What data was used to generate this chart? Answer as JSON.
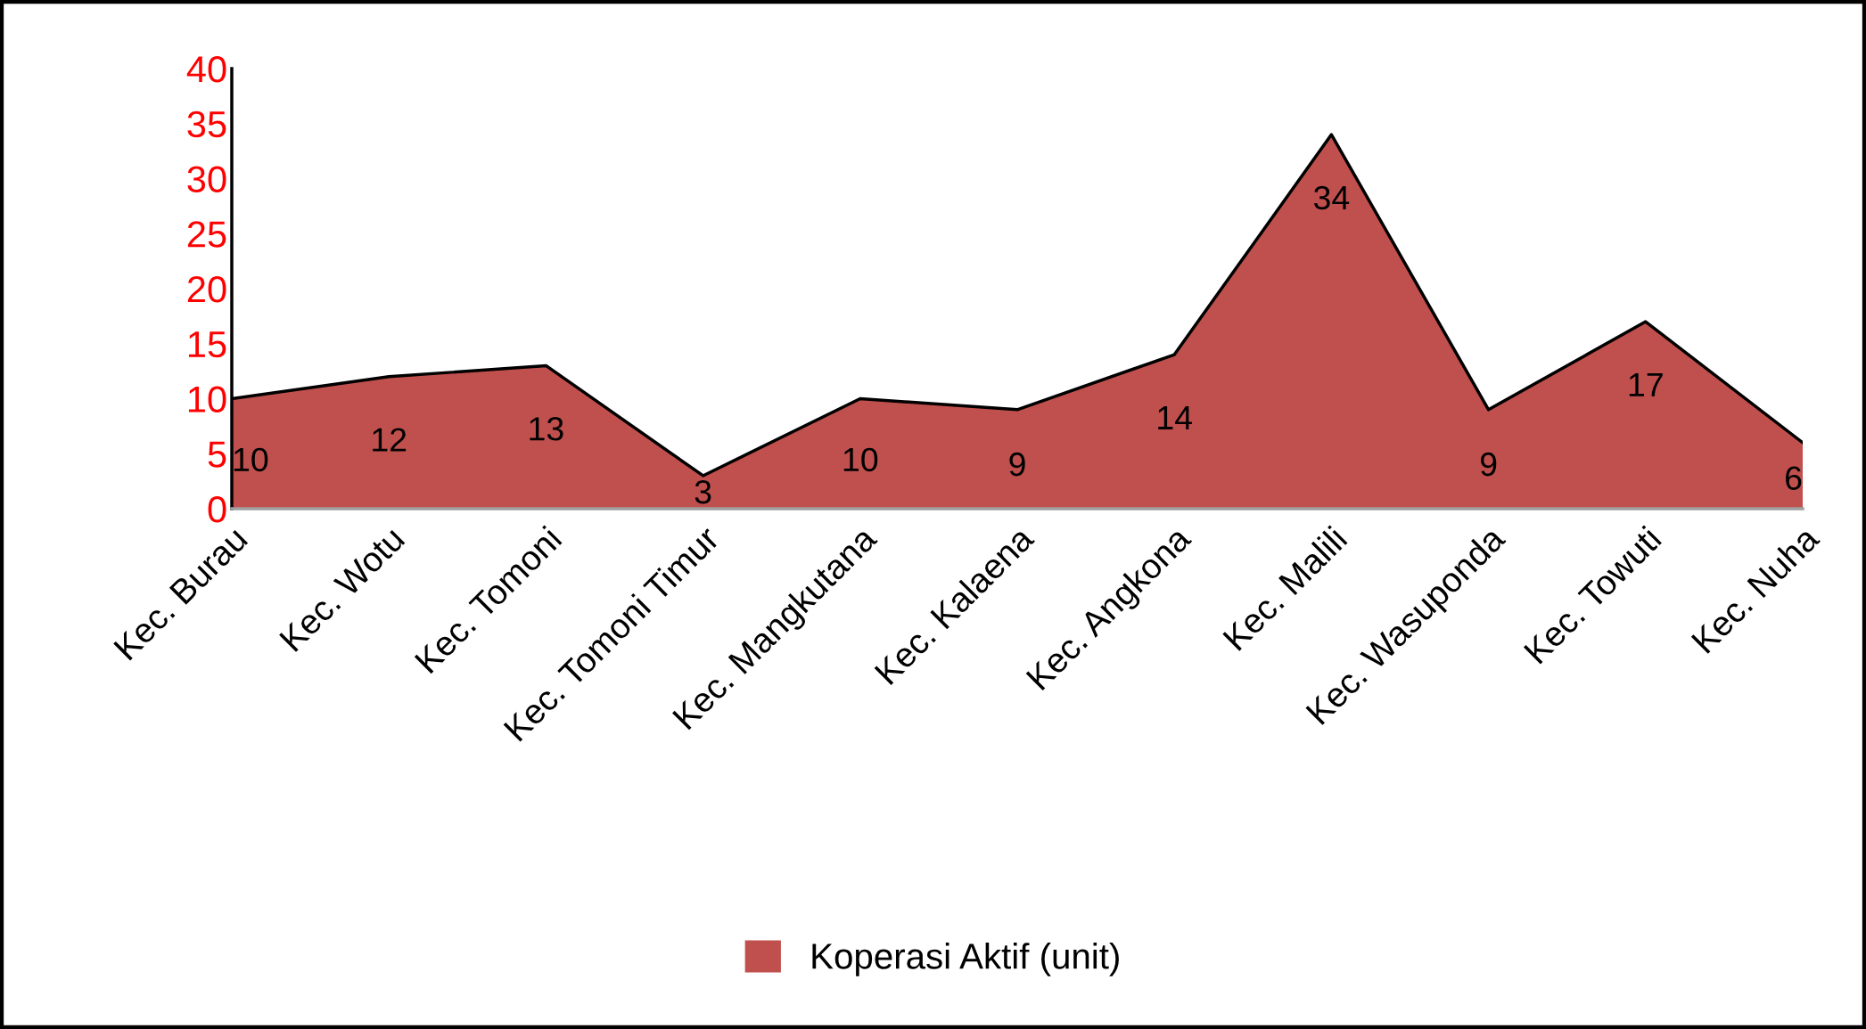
{
  "chart_data": {
    "type": "area",
    "categories": [
      "Kec. Burau",
      "Kec. Wotu",
      "Kec. Tomoni",
      "Kec. Tomoni Timur",
      "Kec. Mangkutana",
      "Kec. Kalaena",
      "Kec. Angkona",
      "Kec. Malili",
      "Kec. Wasuponda",
      "Kec. Towuti",
      "Kec. Nuha"
    ],
    "series": [
      {
        "name": "Koperasi Aktif (unit)",
        "color": "#c0504d",
        "values": [
          10,
          12,
          13,
          3,
          10,
          9,
          14,
          34,
          9,
          17,
          6
        ]
      }
    ],
    "ylim": [
      0,
      40
    ],
    "yticks": [
      0,
      5,
      10,
      15,
      20,
      25,
      30,
      35,
      40
    ],
    "data_labels": true,
    "grid": false,
    "legend": "bottom"
  }
}
